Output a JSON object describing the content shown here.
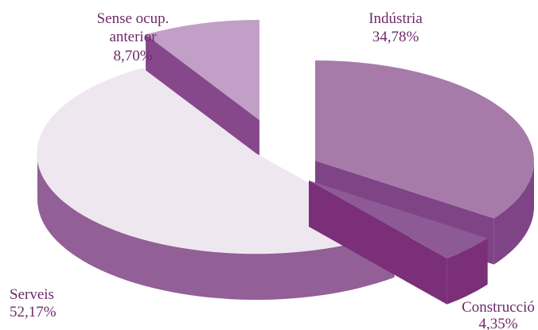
{
  "chart_data": {
    "type": "pie",
    "style": "3d-exploded",
    "slices": [
      {
        "label": "Indústria",
        "value": 34.78,
        "value_label": "34,78%",
        "color": "#a67ba9"
      },
      {
        "label": "Construcció",
        "value": 4.35,
        "value_label": "4,35%",
        "color": "#8d5a96"
      },
      {
        "label": "Serveis",
        "value": 52.17,
        "value_label": "52,17%",
        "color": "#efe7ef"
      },
      {
        "label": "Sense ocup. anterior",
        "label_lines": [
          "Sense ocup.",
          "anterior"
        ],
        "value": 8.7,
        "value_label": "8,70%",
        "color": "#c19fc6"
      }
    ],
    "side_colors": {
      "Indústria": "#7f4486",
      "Construcció": "#7a2f78",
      "Serveis": "#925f97",
      "Sense ocup. anterior": "#86488b"
    },
    "label_color": "#6e2a6b"
  }
}
